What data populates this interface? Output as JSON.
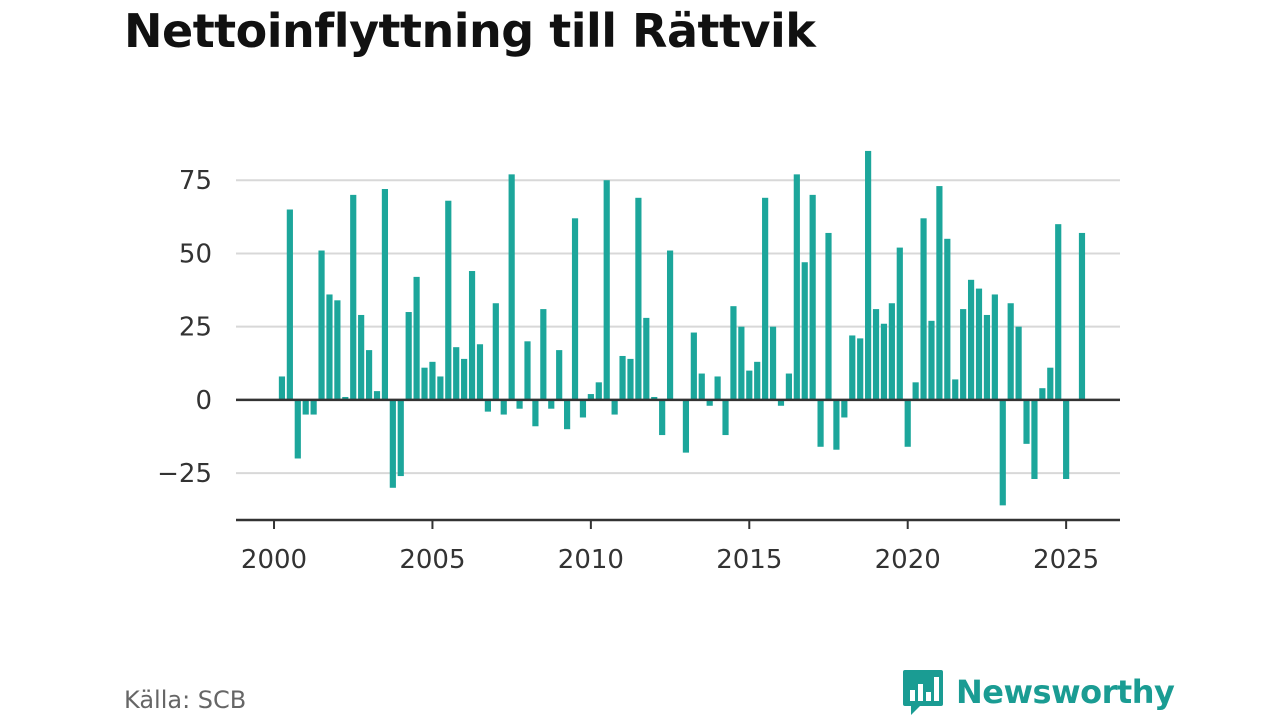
{
  "title": "Nettoinflyttning till Rättvik",
  "source": "Källa: SCB",
  "logo": {
    "wordmark": "Newsworthy",
    "icon": "bar-chart-speech-bubble-icon",
    "color": "#1a9c93"
  },
  "colors": {
    "bar": "#1ca69b",
    "grid": "#d8d8d8",
    "zero_line": "#333333",
    "axis": "#333333"
  },
  "chart_data": {
    "type": "bar",
    "title": "Nettoinflyttning till Rättvik",
    "xlabel": "",
    "ylabel": "",
    "ylim": [
      -41,
      86
    ],
    "xlim": [
      1998.8,
      2026.7
    ],
    "yticks": [
      -25,
      0,
      25,
      50,
      75
    ],
    "ytick_labels": [
      "−25",
      "0",
      "25",
      "50",
      "75"
    ],
    "xticks": [
      2000,
      2005,
      2010,
      2015,
      2020,
      2025
    ],
    "xtick_labels": [
      "2000",
      "2005",
      "2010",
      "2015",
      "2020",
      "2025"
    ],
    "grid": true,
    "x_start_year": 2000,
    "periods_per_year": 4,
    "values": [
      8,
      65,
      -20,
      -5,
      -5,
      51,
      36,
      34,
      1,
      70,
      29,
      17,
      3,
      72,
      -30,
      -26,
      30,
      42,
      11,
      13,
      8,
      68,
      18,
      14,
      44,
      19,
      -4,
      33,
      -5,
      77,
      -3,
      20,
      -9,
      31,
      -3,
      17,
      -10,
      62,
      -6,
      2,
      6,
      75,
      -5,
      15,
      14,
      69,
      28,
      1,
      -12,
      51,
      0,
      -18,
      23,
      9,
      -2,
      8,
      -12,
      32,
      25,
      10,
      13,
      69,
      25,
      -2,
      9,
      77,
      47,
      70,
      -16,
      57,
      -17,
      -6,
      22,
      21,
      85,
      31,
      26,
      33,
      52,
      -16,
      6,
      62,
      27,
      73,
      55,
      7,
      31,
      41,
      38,
      29,
      36,
      -36,
      33,
      25,
      -15,
      -27,
      4,
      11,
      60,
      -27,
      0,
      57
    ]
  }
}
